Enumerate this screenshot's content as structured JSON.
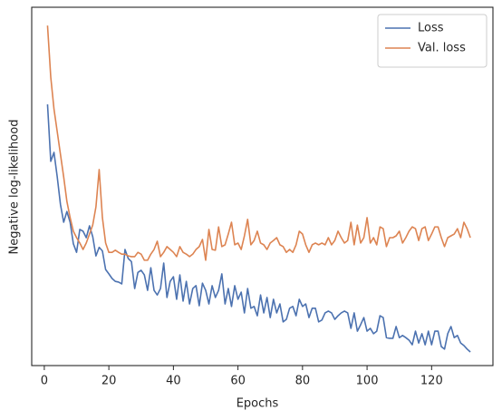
{
  "chart_data": {
    "type": "line",
    "xlabel": "Epochs",
    "ylabel": "Negative log-likelihood",
    "x": [
      1,
      2,
      3,
      4,
      5,
      6,
      7,
      8,
      9,
      10,
      11,
      12,
      13,
      14,
      15,
      16,
      17,
      18,
      19,
      20,
      21,
      22,
      23,
      24,
      25,
      26,
      27,
      28,
      29,
      30,
      31,
      32,
      33,
      34,
      35,
      36,
      37,
      38,
      39,
      40,
      41,
      42,
      43,
      44,
      45,
      46,
      47,
      48,
      49,
      50,
      51,
      52,
      53,
      54,
      55,
      56,
      57,
      58,
      59,
      60,
      61,
      62,
      63,
      64,
      65,
      66,
      67,
      68,
      69,
      70,
      71,
      72,
      73,
      74,
      75,
      76,
      77,
      78,
      79,
      80,
      81,
      82,
      83,
      84,
      85,
      86,
      87,
      88,
      89,
      90,
      91,
      92,
      93,
      94,
      95,
      96,
      97,
      98,
      99,
      100,
      101,
      102,
      103,
      104,
      105,
      106,
      107,
      108,
      109,
      110,
      111,
      112,
      113,
      114,
      115,
      116,
      117,
      118,
      119,
      120,
      121,
      122,
      123,
      124,
      125,
      126,
      127,
      128,
      129,
      130,
      131,
      132
    ],
    "series": [
      {
        "name": "Loss",
        "color": "#4c72b0",
        "values": [
          72.9,
          57,
          59.5,
          52.7,
          45,
          40,
          43,
          40,
          34,
          31.6,
          38,
          37.5,
          35.7,
          39,
          36,
          30.6,
          33,
          32,
          26.8,
          25.6,
          24.3,
          23.5,
          23.3,
          22.8,
          32.4,
          29.9,
          29,
          21.5,
          26,
          26.6,
          25.3,
          21,
          27.3,
          21,
          19.7,
          21.5,
          28.6,
          19,
          23.5,
          24.8,
          18.5,
          25.3,
          18,
          23.5,
          17.2,
          21.5,
          22.3,
          16.7,
          23,
          21,
          17.2,
          22.3,
          19,
          21,
          25.6,
          17.2,
          21.5,
          16.5,
          22.3,
          18.5,
          20.5,
          14.7,
          21.5,
          16,
          16.5,
          13.9,
          19.7,
          14.7,
          19,
          13.4,
          18.5,
          14.7,
          17.2,
          12.2,
          12.9,
          16,
          16.5,
          13.9,
          18.5,
          16.5,
          17.2,
          13.4,
          16,
          16,
          12.2,
          12.7,
          14.7,
          15.2,
          14.7,
          12.9,
          13.9,
          14.7,
          15.2,
          14.7,
          10.4,
          14.7,
          9.6,
          11.4,
          13.4,
          9.6,
          10.4,
          8.9,
          9.6,
          13.9,
          13.4,
          7.8,
          7.6,
          7.6,
          10.9,
          7.8,
          8.4,
          7.8,
          7.1,
          5.8,
          9.6,
          6.3,
          8.9,
          5.8,
          9.6,
          5.8,
          9.6,
          9.6,
          5.3,
          4.6,
          8.9,
          10.9,
          7.8,
          8.4,
          6.3,
          5.6,
          4.6,
          3.8
        ]
      },
      {
        "name": "Val. loss",
        "color": "#dd8452",
        "values": [
          94.9,
          80.5,
          71.6,
          65.3,
          59,
          52.7,
          45.8,
          41.3,
          37.5,
          35.7,
          34.2,
          32.4,
          34.2,
          36.7,
          39.2,
          44.3,
          54.7,
          41.3,
          34.2,
          31.6,
          31.6,
          32.2,
          31.6,
          31.1,
          31.1,
          30.6,
          30.4,
          30.4,
          31.6,
          31.1,
          29.4,
          29.4,
          31.1,
          32.4,
          34.7,
          30.4,
          31.6,
          33.2,
          32.4,
          31.6,
          30.4,
          33.2,
          31.6,
          31.1,
          30.4,
          31.1,
          32.4,
          33.2,
          35.2,
          29.4,
          38,
          32.4,
          32.2,
          38.7,
          33.2,
          33.7,
          36.7,
          40,
          33.7,
          34.2,
          32.4,
          36.2,
          40.8,
          33.7,
          34.9,
          37.5,
          34.2,
          33.7,
          32.4,
          34.2,
          34.9,
          35.7,
          33.7,
          33.2,
          31.6,
          32.4,
          31.6,
          33.7,
          37.5,
          36.7,
          33.7,
          31.6,
          33.7,
          34.2,
          33.7,
          34.2,
          33.7,
          35.7,
          33.7,
          34.9,
          37.5,
          35.7,
          34.2,
          34.9,
          40,
          33.7,
          39.2,
          34.2,
          35.7,
          41.3,
          34.2,
          35.7,
          33.7,
          38.7,
          38.2,
          33.2,
          35.7,
          35.7,
          36.2,
          37.5,
          34.2,
          35.7,
          37.5,
          38.7,
          38.2,
          34.9,
          38.2,
          38.7,
          34.9,
          36.7,
          38.7,
          38.7,
          35.7,
          33.2,
          35.7,
          36.2,
          36.7,
          38.2,
          35.7,
          40,
          38.2,
          35.7
        ]
      }
    ],
    "xlim": [
      -3.9,
      139
    ],
    "ylim": [
      0,
      100
    ],
    "xticks": [
      0,
      20,
      40,
      60,
      80,
      100,
      120
    ],
    "legend": "upper right"
  }
}
